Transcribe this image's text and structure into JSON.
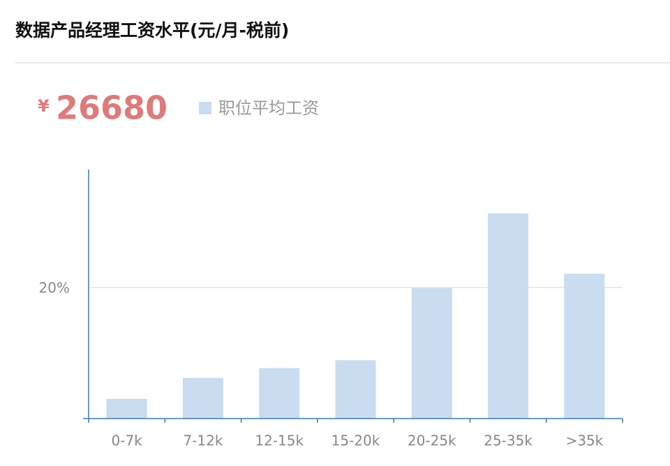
{
  "chart_data": {
    "type": "bar",
    "title": "数据产品经理工资水平(元/月-税前)",
    "summary_currency": "¥",
    "summary_value": 26680,
    "series": [
      {
        "name": "职位平均工资",
        "color": "#c9dcf0",
        "values": [
          3.0,
          6.2,
          7.7,
          8.9,
          19.9,
          31.3,
          22.1
        ]
      }
    ],
    "categories": [
      "0-7k",
      "7-12k",
      "12-15k",
      "15-20k",
      "20-25k",
      "25-35k",
      ">35k"
    ],
    "ylim": [
      0,
      38
    ],
    "yticks": [
      {
        "value": 20,
        "label": "20%"
      }
    ],
    "grid": true
  }
}
